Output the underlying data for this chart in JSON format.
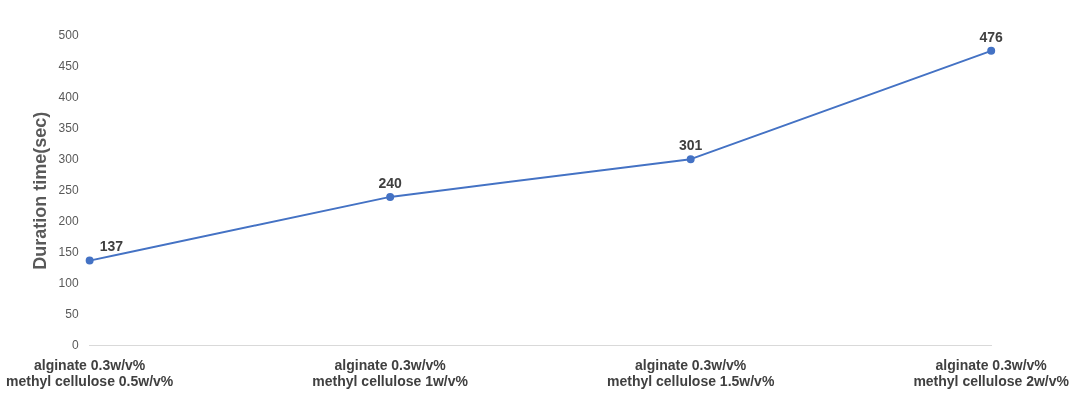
{
  "chart_data": {
    "type": "line",
    "ylabel": "Duration time(sec)",
    "categories": [
      "alginate 0.3w/v%\nmethyl cellulose 0.5w/v%",
      "alginate 0.3w/v%\nmethyl cellulose 1w/v%",
      "alginate 0.3w/v%\nmethyl cellulose 1.5w/v%",
      "alginate 0.3w/v%\nmethyl cellulose 2w/v%"
    ],
    "series": [
      {
        "color": "#4472c4",
        "values": [
          137,
          240,
          301,
          476
        ]
      }
    ],
    "ylim": [
      0,
      500
    ],
    "yticks": [
      0,
      50,
      100,
      150,
      200,
      250,
      300,
      350,
      400,
      450,
      500
    ],
    "grid": false,
    "legend": false,
    "marker": "circle",
    "line_style": "solid",
    "data_labels": true
  }
}
